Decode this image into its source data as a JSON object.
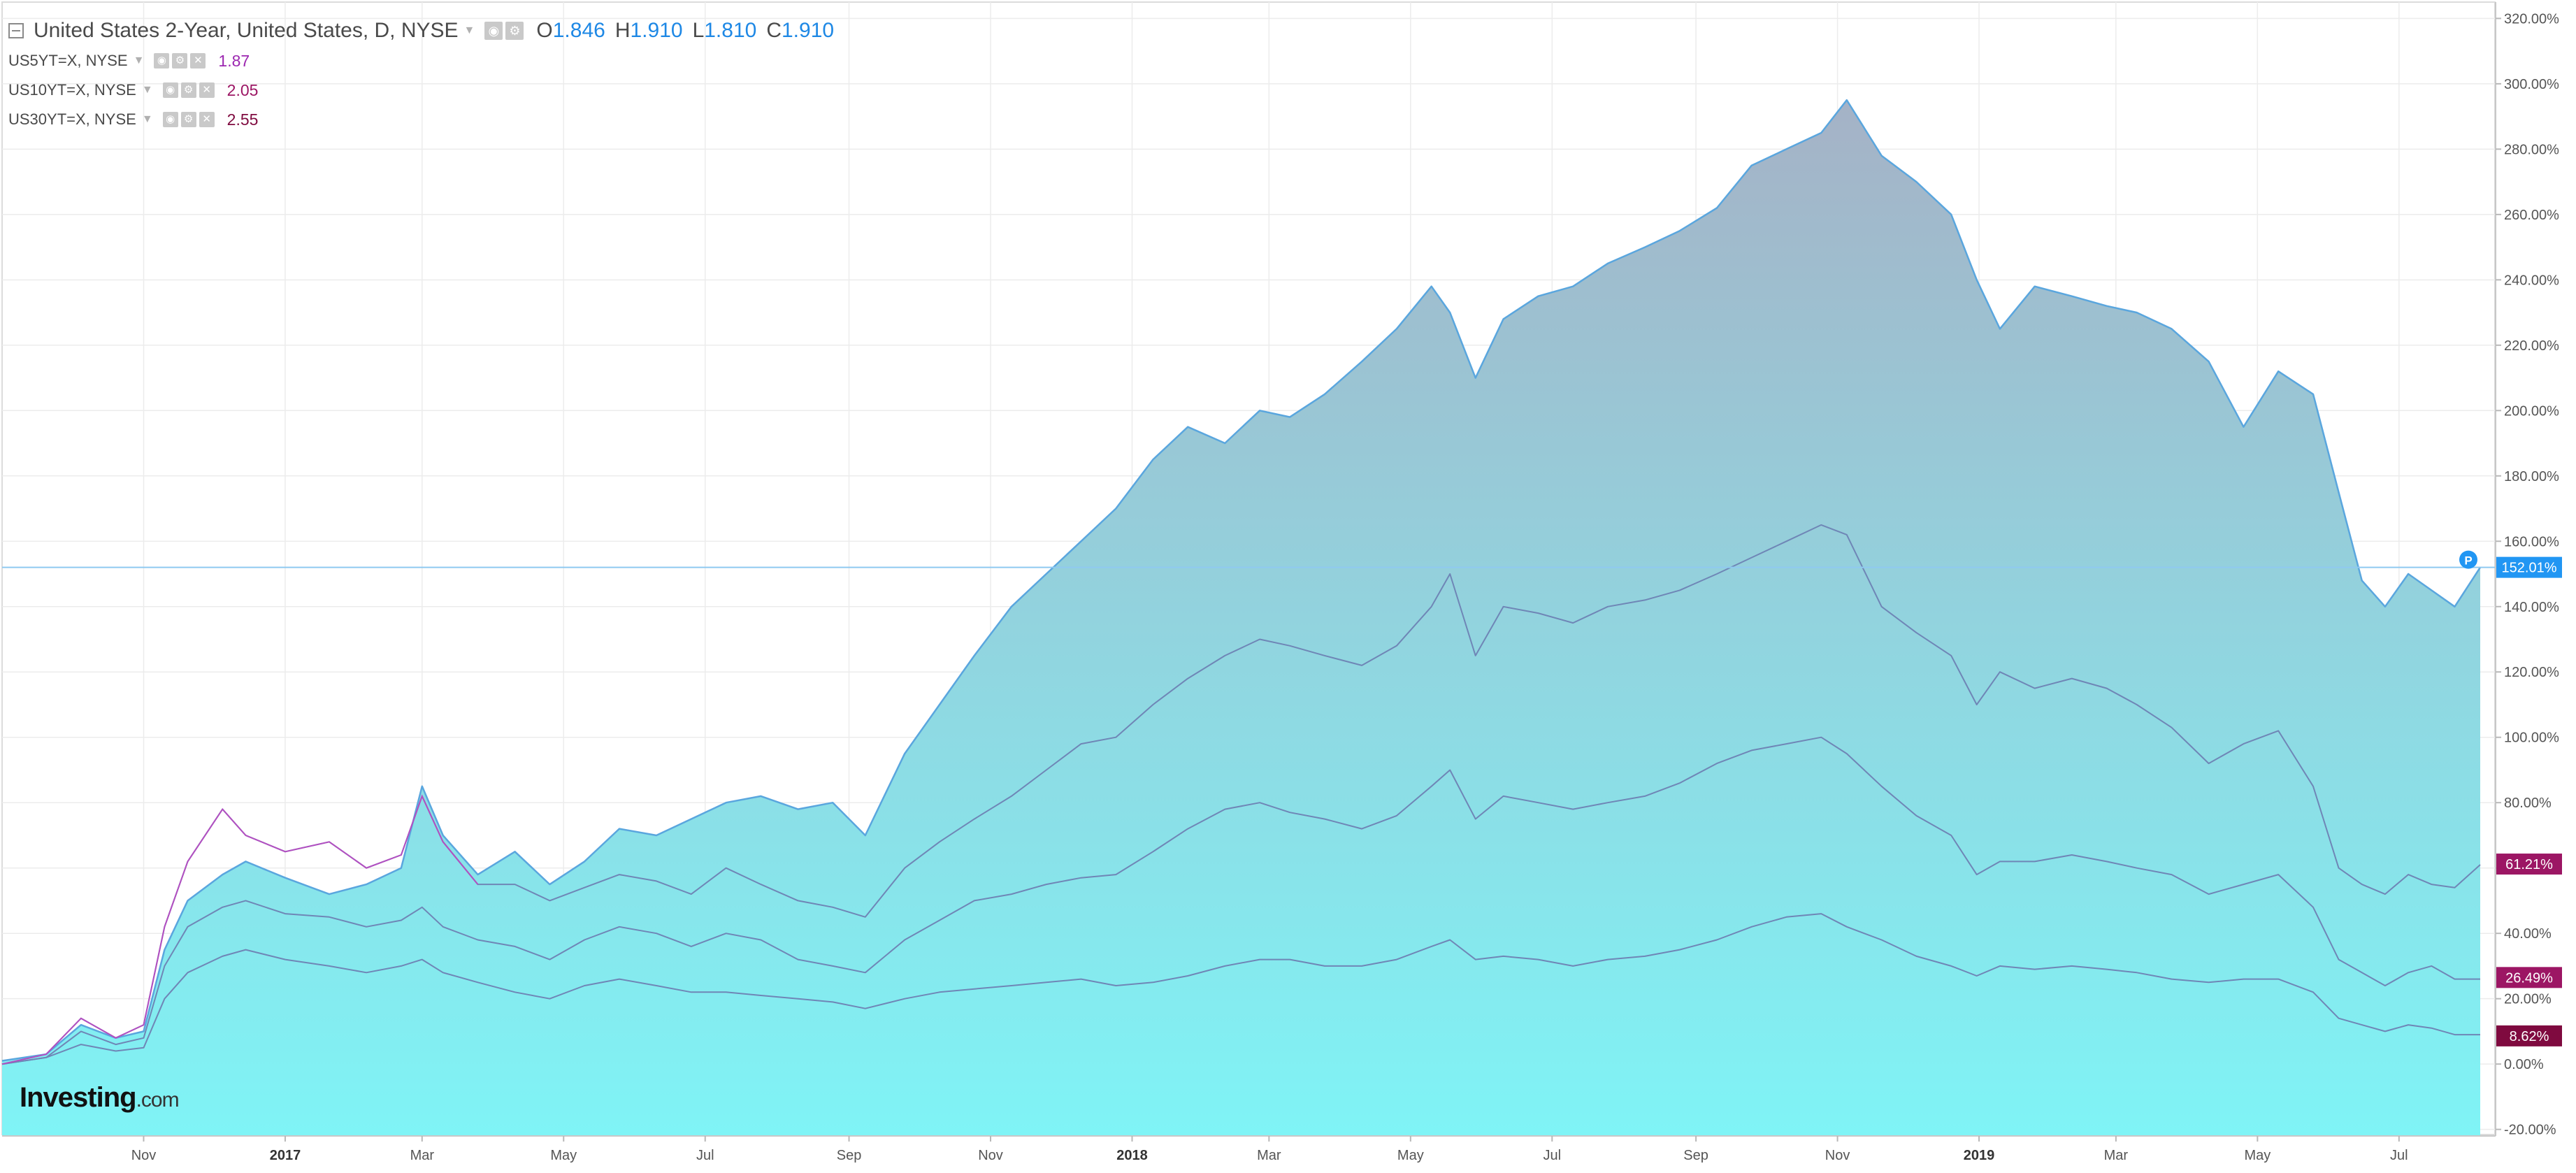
{
  "legend": {
    "main_title": "United States 2-Year, United States, D, NYSE",
    "ohlc": {
      "o_label": "O",
      "o_value": "1.846",
      "h_label": "H",
      "h_value": "1.910",
      "l_label": "L",
      "l_value": "1.810",
      "c_label": "C",
      "c_value": "1.910"
    },
    "comparisons": [
      {
        "label": "US5YT=X, NYSE",
        "value": "1.87"
      },
      {
        "label": "US10YT=X, NYSE",
        "value": "2.05"
      },
      {
        "label": "US30YT=X, NYSE",
        "value": "2.55"
      }
    ]
  },
  "logo": {
    "text": "Investing",
    "suffix": ".com"
  },
  "colors": {
    "main_line": "#5aa6de",
    "area_top": "#a5b2c6",
    "area_bottom": "#7ff4f6",
    "secondary_line": "#6f86b6",
    "us5y_early": "#b34fc1",
    "price_line": "#8fc9f0",
    "badge_blue": "#2196f3",
    "badge_magenta": "#9c1664",
    "badge_dark": "#7f0a3f",
    "grid": "#ececec",
    "axis_text": "#555555"
  },
  "chart_data": {
    "type": "area",
    "title": "United States 2-Year, United States, D, NYSE",
    "xlabel": "",
    "ylabel": "",
    "y_unit": "%",
    "scale": "percentage change",
    "ylim": [
      -22,
      325
    ],
    "x_range": [
      "2016-09-01",
      "2019-08-05"
    ],
    "y_ticks": [
      "320.00%",
      "300.00%",
      "280.00%",
      "260.00%",
      "240.00%",
      "220.00%",
      "200.00%",
      "180.00%",
      "160.00%",
      "140.00%",
      "120.00%",
      "100.00%",
      "80.00%",
      "60.00%",
      "40.00%",
      "20.00%",
      "0.00%",
      "-20.00%"
    ],
    "y_tick_values": [
      320,
      300,
      280,
      260,
      240,
      220,
      200,
      180,
      160,
      140,
      120,
      100,
      80,
      60,
      40,
      20,
      0,
      -20
    ],
    "x_tick_labels": [
      {
        "label": "Nov",
        "date": "2016-11-01",
        "bold": false
      },
      {
        "label": "2017",
        "date": "2017-01-01",
        "bold": true
      },
      {
        "label": "Mar",
        "date": "2017-03-01",
        "bold": false
      },
      {
        "label": "May",
        "date": "2017-05-01",
        "bold": false
      },
      {
        "label": "Jul",
        "date": "2017-07-01",
        "bold": false
      },
      {
        "label": "Sep",
        "date": "2017-09-01",
        "bold": false
      },
      {
        "label": "Nov",
        "date": "2017-11-01",
        "bold": false
      },
      {
        "label": "2018",
        "date": "2018-01-01",
        "bold": true
      },
      {
        "label": "Mar",
        "date": "2018-03-01",
        "bold": false
      },
      {
        "label": "May",
        "date": "2018-05-01",
        "bold": false
      },
      {
        "label": "Jul",
        "date": "2018-07-01",
        "bold": false
      },
      {
        "label": "Sep",
        "date": "2018-09-01",
        "bold": false
      },
      {
        "label": "Nov",
        "date": "2018-11-01",
        "bold": false
      },
      {
        "label": "2019",
        "date": "2019-01-01",
        "bold": true
      },
      {
        "label": "Mar",
        "date": "2019-03-01",
        "bold": false
      },
      {
        "label": "May",
        "date": "2019-05-01",
        "bold": false
      },
      {
        "label": "Jul",
        "date": "2019-07-01",
        "bold": false
      }
    ],
    "price_line": {
      "value": 152.01,
      "label": "152.01%",
      "marker": "P"
    },
    "value_badges": [
      {
        "value": 61.21,
        "label": "61.21%",
        "color_key": "badge_magenta"
      },
      {
        "value": 26.49,
        "label": "26.49%",
        "color_key": "badge_magenta"
      },
      {
        "value": 8.62,
        "label": "8.62%",
        "color_key": "badge_dark"
      }
    ],
    "series": [
      {
        "name": "United States 2-Year, United States, D, NYSE",
        "style": "area",
        "x": [
          "2016-09-01",
          "2016-09-20",
          "2016-10-05",
          "2016-10-20",
          "2016-11-01",
          "2016-11-10",
          "2016-11-20",
          "2016-12-05",
          "2016-12-15",
          "2017-01-01",
          "2017-01-20",
          "2017-02-05",
          "2017-02-20",
          "2017-03-01",
          "2017-03-10",
          "2017-03-25",
          "2017-04-10",
          "2017-04-25",
          "2017-05-10",
          "2017-05-25",
          "2017-06-10",
          "2017-06-25",
          "2017-07-10",
          "2017-07-25",
          "2017-08-10",
          "2017-08-25",
          "2017-09-08",
          "2017-09-25",
          "2017-10-10",
          "2017-10-25",
          "2017-11-10",
          "2017-11-25",
          "2017-12-10",
          "2017-12-25",
          "2018-01-10",
          "2018-01-25",
          "2018-02-10",
          "2018-02-25",
          "2018-03-10",
          "2018-03-25",
          "2018-04-10",
          "2018-04-25",
          "2018-05-10",
          "2018-05-18",
          "2018-05-29",
          "2018-06-10",
          "2018-06-25",
          "2018-07-10",
          "2018-07-25",
          "2018-08-10",
          "2018-08-25",
          "2018-09-10",
          "2018-09-25",
          "2018-10-10",
          "2018-10-25",
          "2018-11-05",
          "2018-11-20",
          "2018-12-05",
          "2018-12-20",
          "2018-12-31",
          "2019-01-10",
          "2019-01-25",
          "2019-02-10",
          "2019-02-25",
          "2019-03-10",
          "2019-03-25",
          "2019-04-10",
          "2019-04-25",
          "2019-05-10",
          "2019-05-25",
          "2019-06-05",
          "2019-06-15",
          "2019-06-25",
          "2019-07-05",
          "2019-07-15",
          "2019-07-25",
          "2019-08-05"
        ],
        "values": [
          1,
          3,
          12,
          8,
          10,
          35,
          50,
          58,
          62,
          57,
          52,
          55,
          60,
          85,
          70,
          58,
          65,
          55,
          62,
          72,
          70,
          75,
          80,
          82,
          78,
          80,
          70,
          95,
          110,
          125,
          140,
          150,
          160,
          170,
          185,
          195,
          190,
          200,
          198,
          205,
          215,
          225,
          238,
          230,
          210,
          228,
          235,
          238,
          245,
          250,
          255,
          262,
          275,
          280,
          285,
          295,
          278,
          270,
          260,
          240,
          225,
          238,
          235,
          232,
          230,
          225,
          215,
          195,
          212,
          205,
          175,
          148,
          140,
          150,
          145,
          140,
          152
        ]
      },
      {
        "name": "US5YT=X, NYSE",
        "style": "line",
        "x": [
          "2016-09-01",
          "2016-09-20",
          "2016-10-05",
          "2016-10-20",
          "2016-11-01",
          "2016-11-10",
          "2016-11-20",
          "2016-12-05",
          "2016-12-15",
          "2017-01-01",
          "2017-01-20",
          "2017-02-05",
          "2017-02-20",
          "2017-03-01",
          "2017-03-10",
          "2017-03-25",
          "2017-04-10",
          "2017-04-25",
          "2017-05-10",
          "2017-05-25",
          "2017-06-10",
          "2017-06-25",
          "2017-07-10",
          "2017-07-25",
          "2017-08-10",
          "2017-08-25",
          "2017-09-08",
          "2017-09-25",
          "2017-10-10",
          "2017-10-25",
          "2017-11-10",
          "2017-11-25",
          "2017-12-10",
          "2017-12-25",
          "2018-01-10",
          "2018-01-25",
          "2018-02-10",
          "2018-02-25",
          "2018-03-10",
          "2018-03-25",
          "2018-04-10",
          "2018-04-25",
          "2018-05-10",
          "2018-05-18",
          "2018-05-29",
          "2018-06-10",
          "2018-06-25",
          "2018-07-10",
          "2018-07-25",
          "2018-08-10",
          "2018-08-25",
          "2018-09-10",
          "2018-09-25",
          "2018-10-10",
          "2018-10-25",
          "2018-11-05",
          "2018-11-20",
          "2018-12-05",
          "2018-12-20",
          "2018-12-31",
          "2019-01-10",
          "2019-01-25",
          "2019-02-10",
          "2019-02-25",
          "2019-03-10",
          "2019-03-25",
          "2019-04-10",
          "2019-04-25",
          "2019-05-10",
          "2019-05-25",
          "2019-06-05",
          "2019-06-15",
          "2019-06-25",
          "2019-07-05",
          "2019-07-15",
          "2019-07-25",
          "2019-08-05"
        ],
        "values": [
          0,
          3,
          14,
          8,
          12,
          42,
          62,
          78,
          70,
          65,
          68,
          60,
          64,
          82,
          68,
          55,
          55,
          50,
          54,
          58,
          56,
          52,
          60,
          55,
          50,
          48,
          45,
          60,
          68,
          75,
          82,
          90,
          98,
          100,
          110,
          118,
          125,
          130,
          128,
          125,
          122,
          128,
          140,
          150,
          125,
          140,
          138,
          135,
          140,
          142,
          145,
          150,
          155,
          160,
          165,
          162,
          140,
          132,
          125,
          110,
          120,
          115,
          118,
          115,
          110,
          103,
          92,
          98,
          102,
          85,
          60,
          55,
          52,
          58,
          55,
          54,
          61
        ]
      },
      {
        "name": "US10YT=X, NYSE",
        "style": "line",
        "x": [
          "2016-09-01",
          "2016-09-20",
          "2016-10-05",
          "2016-10-20",
          "2016-11-01",
          "2016-11-10",
          "2016-11-20",
          "2016-12-05",
          "2016-12-15",
          "2017-01-01",
          "2017-01-20",
          "2017-02-05",
          "2017-02-20",
          "2017-03-01",
          "2017-03-10",
          "2017-03-25",
          "2017-04-10",
          "2017-04-25",
          "2017-05-10",
          "2017-05-25",
          "2017-06-10",
          "2017-06-25",
          "2017-07-10",
          "2017-07-25",
          "2017-08-10",
          "2017-08-25",
          "2017-09-08",
          "2017-09-25",
          "2017-10-10",
          "2017-10-25",
          "2017-11-10",
          "2017-11-25",
          "2017-12-10",
          "2017-12-25",
          "2018-01-10",
          "2018-01-25",
          "2018-02-10",
          "2018-02-25",
          "2018-03-10",
          "2018-03-25",
          "2018-04-10",
          "2018-04-25",
          "2018-05-10",
          "2018-05-18",
          "2018-05-29",
          "2018-06-10",
          "2018-06-25",
          "2018-07-10",
          "2018-07-25",
          "2018-08-10",
          "2018-08-25",
          "2018-09-10",
          "2018-09-25",
          "2018-10-10",
          "2018-10-25",
          "2018-11-05",
          "2018-11-20",
          "2018-12-05",
          "2018-12-20",
          "2018-12-31",
          "2019-01-10",
          "2019-01-25",
          "2019-02-10",
          "2019-02-25",
          "2019-03-10",
          "2019-03-25",
          "2019-04-10",
          "2019-04-25",
          "2019-05-10",
          "2019-05-25",
          "2019-06-05",
          "2019-06-15",
          "2019-06-25",
          "2019-07-05",
          "2019-07-15",
          "2019-07-25",
          "2019-08-05"
        ],
        "values": [
          0,
          2,
          10,
          6,
          8,
          30,
          42,
          48,
          50,
          46,
          45,
          42,
          44,
          48,
          42,
          38,
          36,
          32,
          38,
          42,
          40,
          36,
          40,
          38,
          32,
          30,
          28,
          38,
          44,
          50,
          52,
          55,
          57,
          58,
          65,
          72,
          78,
          80,
          77,
          75,
          72,
          76,
          85,
          90,
          75,
          82,
          80,
          78,
          80,
          82,
          86,
          92,
          96,
          98,
          100,
          95,
          85,
          76,
          70,
          58,
          62,
          62,
          64,
          62,
          60,
          58,
          52,
          55,
          58,
          48,
          32,
          28,
          24,
          28,
          30,
          26,
          26
        ]
      },
      {
        "name": "US30YT=X, NYSE",
        "style": "line",
        "x": [
          "2016-09-01",
          "2016-09-20",
          "2016-10-05",
          "2016-10-20",
          "2016-11-01",
          "2016-11-10",
          "2016-11-20",
          "2016-12-05",
          "2016-12-15",
          "2017-01-01",
          "2017-01-20",
          "2017-02-05",
          "2017-02-20",
          "2017-03-01",
          "2017-03-10",
          "2017-03-25",
          "2017-04-10",
          "2017-04-25",
          "2017-05-10",
          "2017-05-25",
          "2017-06-10",
          "2017-06-25",
          "2017-07-10",
          "2017-07-25",
          "2017-08-10",
          "2017-08-25",
          "2017-09-08",
          "2017-09-25",
          "2017-10-10",
          "2017-10-25",
          "2017-11-10",
          "2017-11-25",
          "2017-12-10",
          "2017-12-25",
          "2018-01-10",
          "2018-01-25",
          "2018-02-10",
          "2018-02-25",
          "2018-03-10",
          "2018-03-25",
          "2018-04-10",
          "2018-04-25",
          "2018-05-10",
          "2018-05-18",
          "2018-05-29",
          "2018-06-10",
          "2018-06-25",
          "2018-07-10",
          "2018-07-25",
          "2018-08-10",
          "2018-08-25",
          "2018-09-10",
          "2018-09-25",
          "2018-10-10",
          "2018-10-25",
          "2018-11-05",
          "2018-11-20",
          "2018-12-05",
          "2018-12-20",
          "2018-12-31",
          "2019-01-10",
          "2019-01-25",
          "2019-02-10",
          "2019-02-25",
          "2019-03-10",
          "2019-03-25",
          "2019-04-10",
          "2019-04-25",
          "2019-05-10",
          "2019-05-25",
          "2019-06-05",
          "2019-06-15",
          "2019-06-25",
          "2019-07-05",
          "2019-07-15",
          "2019-07-25",
          "2019-08-05"
        ],
        "values": [
          0,
          2,
          6,
          4,
          5,
          20,
          28,
          33,
          35,
          32,
          30,
          28,
          30,
          32,
          28,
          25,
          22,
          20,
          24,
          26,
          24,
          22,
          22,
          21,
          20,
          19,
          17,
          20,
          22,
          23,
          24,
          25,
          26,
          24,
          25,
          27,
          30,
          32,
          32,
          30,
          30,
          32,
          36,
          38,
          32,
          33,
          32,
          30,
          32,
          33,
          35,
          38,
          42,
          45,
          46,
          42,
          38,
          33,
          30,
          27,
          30,
          29,
          30,
          29,
          28,
          26,
          25,
          26,
          26,
          22,
          14,
          12,
          10,
          12,
          11,
          9,
          9
        ]
      }
    ]
  }
}
